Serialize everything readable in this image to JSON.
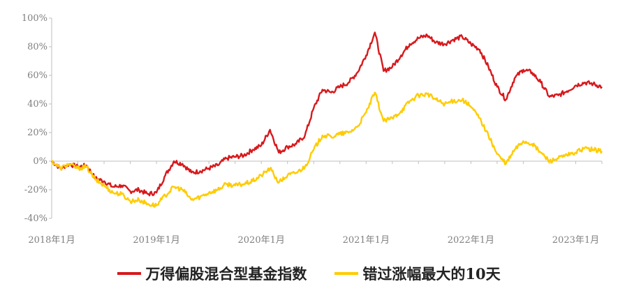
{
  "chart_data": {
    "type": "line",
    "title": "",
    "xlabel": "",
    "ylabel": "",
    "ylim": [
      -40,
      100
    ],
    "y_ticks": [
      -40,
      -20,
      0,
      20,
      40,
      60,
      80,
      100
    ],
    "y_tick_labels": [
      "-40%",
      "-20%",
      "0%",
      "20%",
      "40%",
      "60%",
      "80%",
      "100%"
    ],
    "x_tick_values": [
      "2018-01",
      "2019-01",
      "2020-01",
      "2021-01",
      "2022-01",
      "2023-01"
    ],
    "x_tick_labels": [
      "2018年1月",
      "2019年1月",
      "2020年1月",
      "2021年1月",
      "2022年1月",
      "2023年1月"
    ],
    "xlim": [
      "2018-01",
      "2023-04"
    ],
    "grid": false,
    "legend_position": "bottom",
    "series": [
      {
        "name": "万得偏股混合型基金指数",
        "color": "#d7191c",
        "points": [
          [
            "2018-01",
            0
          ],
          [
            "2018-02",
            -5
          ],
          [
            "2018-03",
            -2
          ],
          [
            "2018-04",
            -4
          ],
          [
            "2018-05",
            -3
          ],
          [
            "2018-06",
            -12
          ],
          [
            "2018-07",
            -14
          ],
          [
            "2018-08",
            -18
          ],
          [
            "2018-09",
            -17
          ],
          [
            "2018-10",
            -21
          ],
          [
            "2018-11",
            -20
          ],
          [
            "2018-12",
            -23
          ],
          [
            "2019-01",
            -22
          ],
          [
            "2019-02",
            -10
          ],
          [
            "2019-03",
            0
          ],
          [
            "2019-04",
            -2
          ],
          [
            "2019-05",
            -8
          ],
          [
            "2019-06",
            -7
          ],
          [
            "2019-07",
            -5
          ],
          [
            "2019-08",
            -3
          ],
          [
            "2019-09",
            2
          ],
          [
            "2019-10",
            3
          ],
          [
            "2019-11",
            4
          ],
          [
            "2019-12",
            8
          ],
          [
            "2020-01",
            11
          ],
          [
            "2020-02",
            22
          ],
          [
            "2020-03",
            6
          ],
          [
            "2020-04",
            10
          ],
          [
            "2020-05",
            12
          ],
          [
            "2020-06",
            18
          ],
          [
            "2020-07",
            37
          ],
          [
            "2020-08",
            50
          ],
          [
            "2020-09",
            48
          ],
          [
            "2020-10",
            52
          ],
          [
            "2020-11",
            55
          ],
          [
            "2020-12",
            62
          ],
          [
            "2021-01",
            74
          ],
          [
            "2021-02",
            90
          ],
          [
            "2021-03",
            63
          ],
          [
            "2021-04",
            66
          ],
          [
            "2021-05",
            74
          ],
          [
            "2021-06",
            82
          ],
          [
            "2021-07",
            86
          ],
          [
            "2021-08",
            88
          ],
          [
            "2021-09",
            83
          ],
          [
            "2021-10",
            82
          ],
          [
            "2021-11",
            85
          ],
          [
            "2021-12",
            87
          ],
          [
            "2022-01",
            82
          ],
          [
            "2022-02",
            78
          ],
          [
            "2022-03",
            66
          ],
          [
            "2022-04",
            52
          ],
          [
            "2022-05",
            43
          ],
          [
            "2022-06",
            58
          ],
          [
            "2022-07",
            64
          ],
          [
            "2022-08",
            62
          ],
          [
            "2022-09",
            55
          ],
          [
            "2022-10",
            45
          ],
          [
            "2022-11",
            46
          ],
          [
            "2022-12",
            49
          ],
          [
            "2023-01",
            53
          ],
          [
            "2023-02",
            55
          ],
          [
            "2023-03",
            54
          ],
          [
            "2023-04",
            52
          ]
        ]
      },
      {
        "name": "错过涨幅最大的10天",
        "color": "#ffcc00",
        "points": [
          [
            "2018-01",
            0
          ],
          [
            "2018-02",
            -5
          ],
          [
            "2018-03",
            -2
          ],
          [
            "2018-04",
            -5
          ],
          [
            "2018-05",
            -4
          ],
          [
            "2018-06",
            -13
          ],
          [
            "2018-07",
            -17
          ],
          [
            "2018-08",
            -22
          ],
          [
            "2018-09",
            -23
          ],
          [
            "2018-10",
            -28
          ],
          [
            "2018-11",
            -27
          ],
          [
            "2018-12",
            -30
          ],
          [
            "2019-01",
            -31
          ],
          [
            "2019-02",
            -24
          ],
          [
            "2019-03",
            -18
          ],
          [
            "2019-04",
            -20
          ],
          [
            "2019-05",
            -27
          ],
          [
            "2019-06",
            -25
          ],
          [
            "2019-07",
            -22
          ],
          [
            "2019-08",
            -20
          ],
          [
            "2019-09",
            -16
          ],
          [
            "2019-10",
            -17
          ],
          [
            "2019-11",
            -16
          ],
          [
            "2019-12",
            -14
          ],
          [
            "2020-01",
            -10
          ],
          [
            "2020-02",
            -5
          ],
          [
            "2020-03",
            -15
          ],
          [
            "2020-04",
            -10
          ],
          [
            "2020-05",
            -8
          ],
          [
            "2020-06",
            -4
          ],
          [
            "2020-07",
            8
          ],
          [
            "2020-08",
            18
          ],
          [
            "2020-09",
            17
          ],
          [
            "2020-10",
            19
          ],
          [
            "2020-11",
            20
          ],
          [
            "2020-12",
            24
          ],
          [
            "2021-01",
            34
          ],
          [
            "2021-02",
            48
          ],
          [
            "2021-03",
            28
          ],
          [
            "2021-04",
            30
          ],
          [
            "2021-05",
            35
          ],
          [
            "2021-06",
            42
          ],
          [
            "2021-07",
            46
          ],
          [
            "2021-08",
            47
          ],
          [
            "2021-09",
            43
          ],
          [
            "2021-10",
            40
          ],
          [
            "2021-11",
            42
          ],
          [
            "2021-12",
            43
          ],
          [
            "2022-01",
            38
          ],
          [
            "2022-02",
            30
          ],
          [
            "2022-03",
            18
          ],
          [
            "2022-04",
            5
          ],
          [
            "2022-05",
            -2
          ],
          [
            "2022-06",
            8
          ],
          [
            "2022-07",
            14
          ],
          [
            "2022-08",
            12
          ],
          [
            "2022-09",
            6
          ],
          [
            "2022-10",
            0
          ],
          [
            "2022-11",
            2
          ],
          [
            "2022-12",
            4
          ],
          [
            "2023-01",
            6
          ],
          [
            "2023-02",
            9
          ],
          [
            "2023-03",
            8
          ],
          [
            "2023-04",
            7
          ]
        ]
      }
    ]
  }
}
